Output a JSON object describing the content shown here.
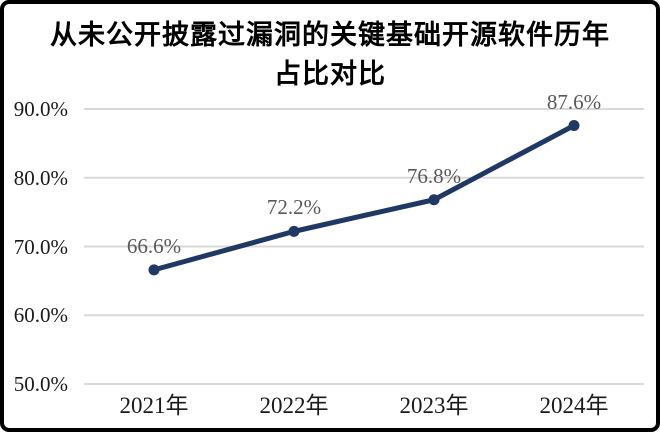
{
  "window": {
    "background_color": "#ffffff",
    "border_color": "#000000"
  },
  "chart_data": {
    "type": "line",
    "title": "从未公开披露过漏洞的关键基础开源软件历年占比对比",
    "title_lines": [
      "从未公开披露过漏洞的关键基础开源软件历年",
      "占比对比"
    ],
    "categories": [
      "2021年",
      "2022年",
      "2023年",
      "2024年"
    ],
    "values": [
      66.6,
      72.2,
      76.8,
      87.6
    ],
    "point_labels": [
      "66.6%",
      "72.2%",
      "76.8%",
      "87.6%"
    ],
    "y_ticks": [
      {
        "value": 90,
        "label": "90.0%"
      },
      {
        "value": 80,
        "label": "80.0%"
      },
      {
        "value": 70,
        "label": "70.0%"
      },
      {
        "value": 60,
        "label": "60.0%"
      },
      {
        "value": 50,
        "label": "50.0%"
      }
    ],
    "ylim": [
      50,
      90
    ],
    "xlabel": "",
    "ylabel": "",
    "grid": "horizontal",
    "legend": "none",
    "line_color": "#1f3864",
    "marker_color": "#1f3864",
    "gridline_color": "#d9d9d9",
    "axis_label_color": "#1a1a1a",
    "data_label_color": "#595959"
  }
}
